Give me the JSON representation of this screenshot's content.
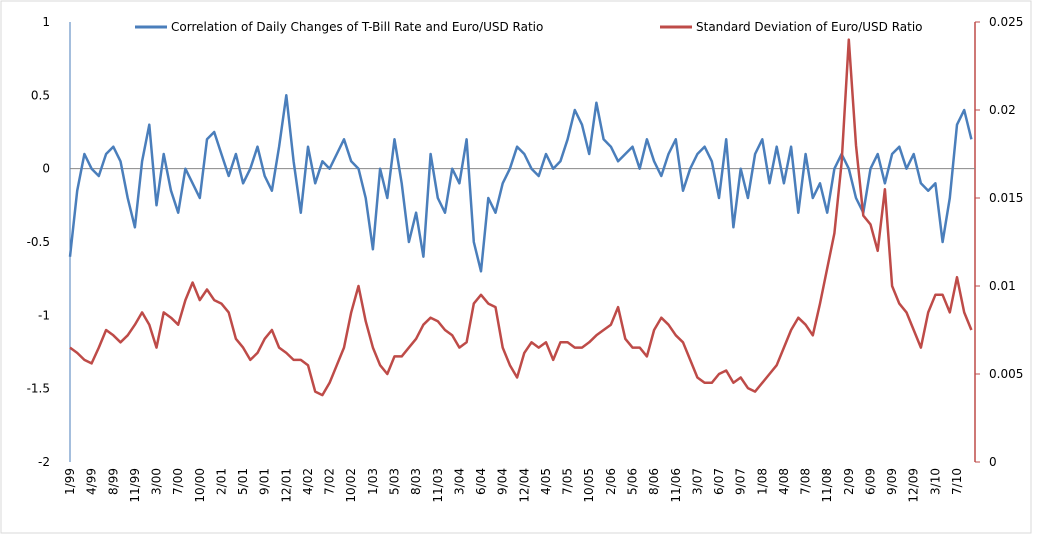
{
  "chart_data": {
    "type": "line",
    "categories": [
      "1/99",
      null,
      null,
      "4/99",
      null,
      null,
      "8/99",
      null,
      null,
      "11/99",
      null,
      null,
      "3/00",
      null,
      null,
      "7/00",
      null,
      null,
      "10/00",
      null,
      null,
      "2/01",
      null,
      null,
      "5/01",
      null,
      null,
      "9/01",
      null,
      null,
      "12/01",
      null,
      null,
      "4/02",
      null,
      null,
      "7/02",
      null,
      null,
      "10/02",
      null,
      null,
      "1/03",
      null,
      null,
      "5/03",
      null,
      null,
      "8/03",
      null,
      null,
      "11/03",
      null,
      null,
      "3/04",
      null,
      null,
      "6/04",
      null,
      null,
      "9/04",
      null,
      null,
      "12/04",
      null,
      null,
      "4/05",
      null,
      null,
      "7/05",
      null,
      null,
      "10/05",
      null,
      null,
      "2/06",
      null,
      null,
      "5/06",
      null,
      null,
      "8/06",
      null,
      null,
      "11/06",
      null,
      null,
      "3/07",
      null,
      null,
      "6/07",
      null,
      null,
      "9/07",
      null,
      null,
      "1/08",
      null,
      null,
      "4/08",
      null,
      null,
      "7/08",
      null,
      null,
      "11/08",
      null,
      null,
      "2/09",
      null,
      null,
      "6/09",
      null,
      null,
      "9/09",
      null,
      null,
      "12/09",
      null,
      null,
      "3/10",
      null,
      null,
      "7/10",
      null,
      null
    ],
    "series": [
      {
        "name": "Correlation of Daily Changes of T-Bill Rate and Euro/USD Ratio",
        "color": "#4a7ebb",
        "values": [
          -0.6,
          -0.15,
          0.1,
          0.0,
          -0.05,
          0.1,
          0.15,
          0.05,
          -0.2,
          -0.4,
          0.05,
          0.3,
          -0.25,
          0.1,
          -0.15,
          -0.3,
          0.0,
          -0.1,
          -0.2,
          0.2,
          0.25,
          0.1,
          -0.05,
          0.1,
          -0.1,
          0.0,
          0.15,
          -0.05,
          -0.15,
          0.15,
          0.5,
          0.05,
          -0.3,
          0.15,
          -0.1,
          0.05,
          0.0,
          0.1,
          0.2,
          0.05,
          0.0,
          -0.2,
          -0.55,
          0.0,
          -0.2,
          0.2,
          -0.1,
          -0.5,
          -0.3,
          -0.6,
          0.1,
          -0.2,
          -0.3,
          0.0,
          -0.1,
          0.2,
          -0.5,
          -0.7,
          -0.2,
          -0.3,
          -0.1,
          0.0,
          0.15,
          0.1,
          0.0,
          -0.05,
          0.1,
          0.0,
          0.05,
          0.2,
          0.4,
          0.3,
          0.1,
          0.45,
          0.2,
          0.15,
          0.05,
          0.1,
          0.15,
          0.0,
          0.2,
          0.05,
          -0.05,
          0.1,
          0.2,
          -0.15,
          0.0,
          0.1,
          0.15,
          0.05,
          -0.2,
          0.2,
          -0.4,
          0.0,
          -0.2,
          0.1,
          0.2,
          -0.1,
          0.15,
          -0.1,
          0.15,
          -0.3,
          0.1,
          -0.2,
          -0.1,
          -0.3,
          0.0,
          0.1,
          0.0,
          -0.2,
          -0.3,
          0.0,
          0.1,
          -0.1,
          0.1,
          0.15,
          0.0,
          0.1,
          -0.1,
          -0.15,
          -0.1,
          -0.5,
          -0.2,
          0.3,
          0.4,
          0.2
        ]
      },
      {
        "name": "Standard Deviation of Euro/USD Ratio",
        "color": "#be4b48",
        "axis": "y2",
        "values": [
          0.0065,
          0.0062,
          0.0058,
          0.0056,
          0.0065,
          0.0075,
          0.0072,
          0.0068,
          0.0072,
          0.0078,
          0.0085,
          0.0078,
          0.0065,
          0.0085,
          0.0082,
          0.0078,
          0.0092,
          0.0102,
          0.0092,
          0.0098,
          0.0092,
          0.009,
          0.0085,
          0.007,
          0.0065,
          0.0058,
          0.0062,
          0.007,
          0.0075,
          0.0065,
          0.0062,
          0.0058,
          0.0058,
          0.0055,
          0.004,
          0.0038,
          0.0045,
          0.0055,
          0.0065,
          0.0085,
          0.01,
          0.008,
          0.0065,
          0.0055,
          0.005,
          0.006,
          0.006,
          0.0065,
          0.007,
          0.0078,
          0.0082,
          0.008,
          0.0075,
          0.0072,
          0.0065,
          0.0068,
          0.009,
          0.0095,
          0.009,
          0.0088,
          0.0065,
          0.0055,
          0.0048,
          0.0062,
          0.0068,
          0.0065,
          0.0068,
          0.0058,
          0.0068,
          0.0068,
          0.0065,
          0.0065,
          0.0068,
          0.0072,
          0.0075,
          0.0078,
          0.0088,
          0.007,
          0.0065,
          0.0065,
          0.006,
          0.0075,
          0.0082,
          0.0078,
          0.0072,
          0.0068,
          0.0058,
          0.0048,
          0.0045,
          0.0045,
          0.005,
          0.0052,
          0.0045,
          0.0048,
          0.0042,
          0.004,
          0.0045,
          0.005,
          0.0055,
          0.0065,
          0.0075,
          0.0082,
          0.0078,
          0.0072,
          0.009,
          0.011,
          0.013,
          0.017,
          0.024,
          0.018,
          0.014,
          0.0135,
          0.012,
          0.0155,
          0.01,
          0.009,
          0.0085,
          0.0075,
          0.0065,
          0.0085,
          0.0095,
          0.0095,
          0.0085,
          0.0105,
          0.0085,
          0.0075
        ]
      }
    ],
    "ylim": [
      -2,
      1
    ],
    "yticks": [
      -2,
      -1.5,
      -1,
      -0.5,
      0,
      0.5,
      1
    ],
    "y2lim": [
      0,
      0.025
    ],
    "y2ticks": [
      0,
      0.005,
      0.01,
      0.015,
      0.02,
      0.025
    ]
  }
}
